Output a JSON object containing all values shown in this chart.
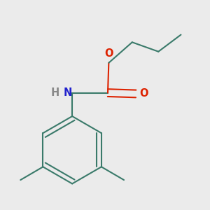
{
  "background_color": "#ebebeb",
  "bond_color": "#3a7a6a",
  "bond_width": 1.5,
  "O_color": "#dd2200",
  "N_color": "#2222cc",
  "H_color": "#888888",
  "figsize": [
    3.0,
    3.0
  ],
  "dpi": 100,
  "xlim": [
    -0.6,
    1.4
  ],
  "ylim": [
    -1.3,
    0.9
  ]
}
